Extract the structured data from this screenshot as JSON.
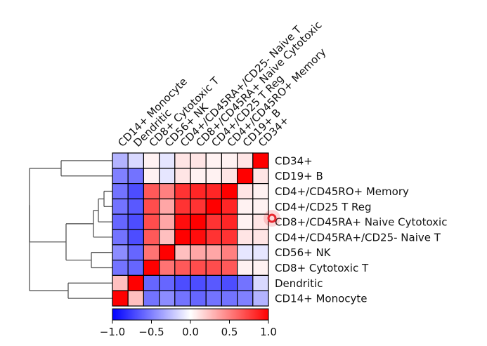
{
  "chart_data": {
    "type": "heatmap",
    "title": "",
    "rows": [
      "CD34+",
      "CD19+ B",
      "CD4+/CD45RO+ Memory",
      "CD4+/CD25 T Reg",
      "CD8+/CD45RA+ Naive Cytotoxic",
      "CD4+/CD45RA+/CD25- Naive T",
      "CD56+ NK",
      "CD8+ Cytotoxic T",
      "Dendritic",
      "CD14+ Monocyte"
    ],
    "columns": [
      "CD14+ Monocyte",
      "Dendritic",
      "CD8+ Cytotoxic T",
      "CD56+ NK",
      "CD4+/CD45RA+/CD25- Naive T",
      "CD8+/CD45RA+ Naive Cytotoxic",
      "CD4+/CD25 T Reg",
      "CD4+/CD45RO+ Memory",
      "CD19+ B",
      "CD34+"
    ],
    "values": [
      [
        -0.3,
        -0.15,
        0.05,
        -0.1,
        0.1,
        0.1,
        0.05,
        0.05,
        0.1,
        1.0
      ],
      [
        -0.5,
        -0.55,
        0.05,
        -0.1,
        0.1,
        0.05,
        0.05,
        0.1,
        1.0,
        0.1
      ],
      [
        -0.55,
        -0.7,
        0.65,
        0.5,
        0.8,
        0.85,
        0.85,
        1.0,
        0.1,
        0.05
      ],
      [
        -0.55,
        -0.65,
        0.7,
        0.35,
        0.8,
        0.8,
        1.0,
        0.85,
        0.05,
        0.05
      ],
      [
        -0.6,
        -0.7,
        0.7,
        0.35,
        0.95,
        1.0,
        0.8,
        0.85,
        0.05,
        0.1
      ],
      [
        -0.55,
        -0.7,
        0.65,
        0.25,
        1.0,
        0.95,
        0.8,
        0.8,
        0.1,
        0.1
      ],
      [
        -0.45,
        -0.6,
        0.55,
        1.0,
        0.25,
        0.35,
        0.35,
        0.5,
        -0.1,
        -0.1
      ],
      [
        -0.55,
        -0.6,
        1.0,
        0.55,
        0.65,
        0.7,
        0.7,
        0.65,
        0.05,
        0.05
      ],
      [
        0.25,
        1.0,
        -0.6,
        -0.6,
        -0.7,
        -0.7,
        -0.65,
        -0.7,
        -0.55,
        -0.15
      ],
      [
        1.0,
        0.25,
        -0.55,
        -0.45,
        -0.55,
        -0.6,
        -0.55,
        -0.55,
        -0.5,
        -0.3
      ]
    ],
    "colorbar": {
      "range": [
        -1.0,
        1.0
      ],
      "ticks": [
        -1.0,
        -0.5,
        0.0,
        0.5,
        1.0
      ],
      "tick_labels": [
        "−1.0",
        "−0.5",
        "0.0",
        "0.5",
        "1.0"
      ],
      "colormap": "bwr",
      "colors": {
        "low": "#0000ff",
        "mid": "#ffffff",
        "high": "#ff0000"
      }
    },
    "dendrogram": {
      "side": "left",
      "color": "#555555"
    },
    "cursor_marker": {
      "color": "#e8262e"
    }
  }
}
